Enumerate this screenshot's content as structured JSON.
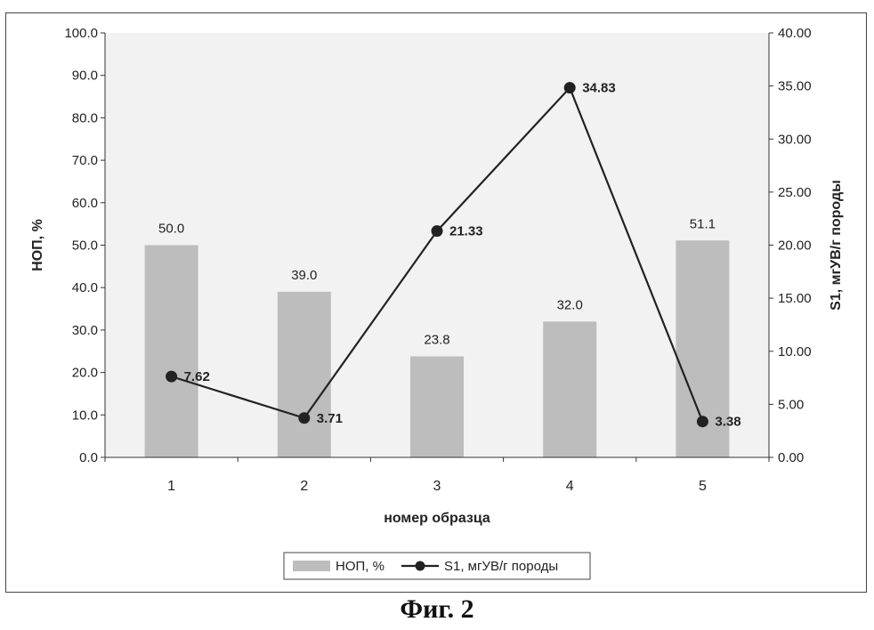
{
  "caption": "Фиг. 2",
  "chart_data": {
    "type": "bar",
    "categories": [
      "1",
      "2",
      "3",
      "4",
      "5"
    ],
    "series": [
      {
        "name": "НОП, %",
        "kind": "bar",
        "axis": "left",
        "values": [
          50.0,
          39.0,
          23.8,
          32.0,
          51.1
        ],
        "labels": [
          "50.0",
          "39.0",
          "23.8",
          "32.0",
          "51.1"
        ],
        "color": "#bdbdbd"
      },
      {
        "name": "S1, мгУВ/г породы",
        "kind": "line",
        "axis": "right",
        "values": [
          7.62,
          3.71,
          21.33,
          34.83,
          3.38
        ],
        "labels": [
          "7.62",
          "3.71",
          "21.33",
          "34.83",
          "3.38"
        ],
        "color": "#222222"
      }
    ],
    "xlabel": "номер образца",
    "ylabel": "НОП, %",
    "y2label": "S1, мгУВ/г породы",
    "ylim": [
      0,
      100
    ],
    "y2lim": [
      0,
      40
    ],
    "yticks": [
      "0.0",
      "10.0",
      "20.0",
      "30.0",
      "40.0",
      "50.0",
      "60.0",
      "70.0",
      "80.0",
      "90.0",
      "100.0"
    ],
    "y2ticks": [
      "0.00",
      "5.00",
      "10.00",
      "15.00",
      "20.00",
      "25.00",
      "30.00",
      "35.00",
      "40.00"
    ],
    "legend": [
      "НОП, %",
      "S1, мгУВ/г породы"
    ],
    "legend_position": "bottom",
    "grid": false,
    "plot_background": "#f2f2f2"
  }
}
